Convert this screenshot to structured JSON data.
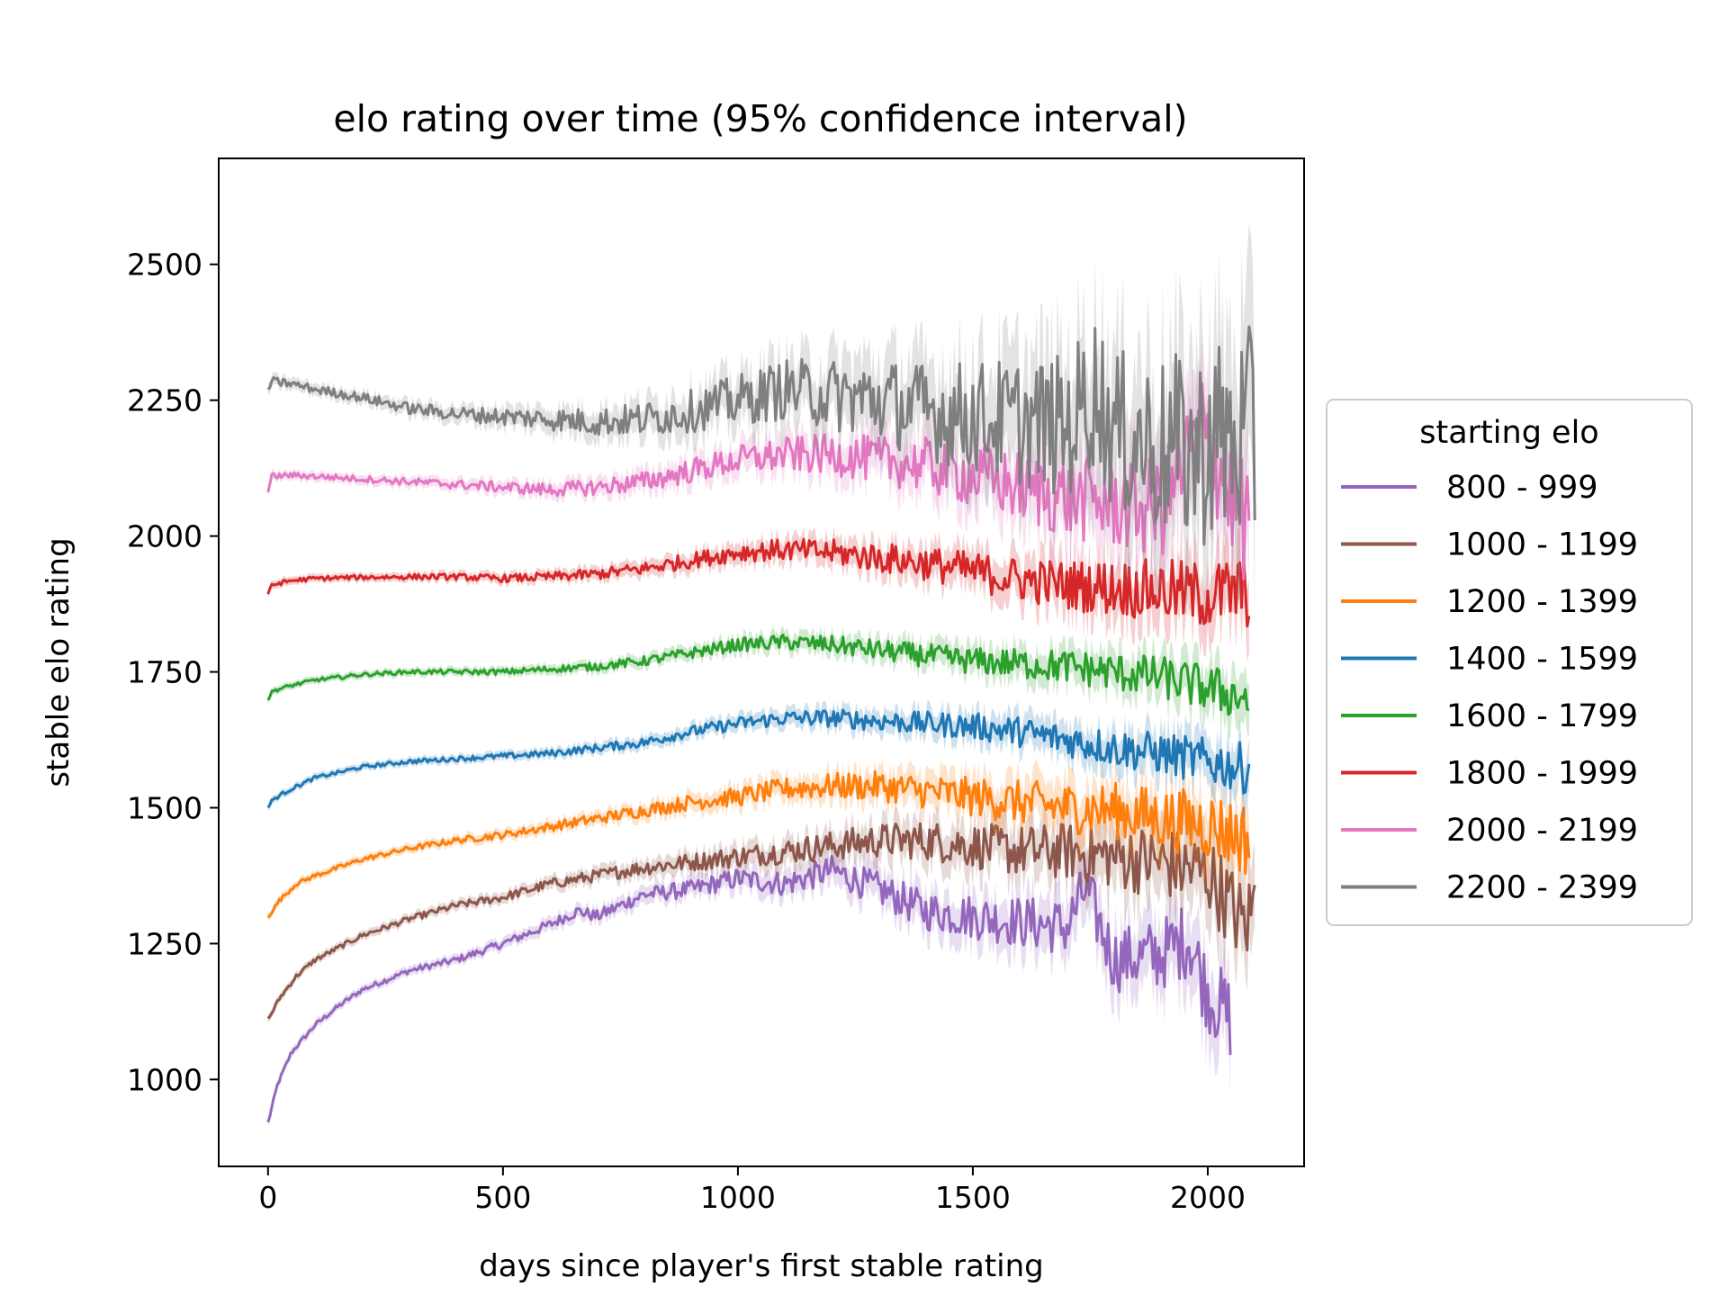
{
  "chart_data": {
    "type": "line",
    "title": "elo rating over time (95% confidence interval)",
    "xlabel": "days since player's first stable rating",
    "ylabel": "stable elo rating",
    "xlim": [
      -105,
      2205
    ],
    "ylim": [
      840,
      2695
    ],
    "x_ticks": [
      0,
      500,
      1000,
      1500,
      2000
    ],
    "y_ticks": [
      1000,
      1250,
      1500,
      1750,
      2000,
      2250,
      2500
    ],
    "x_tick_labels": [
      "0",
      "500",
      "1000",
      "1500",
      "2000"
    ],
    "y_tick_labels": [
      "1000",
      "1250",
      "1500",
      "1750",
      "2000",
      "2250",
      "2500"
    ],
    "grid": false,
    "legend": {
      "title": "starting elo",
      "placement": "center-right-outside"
    },
    "series": [
      {
        "name": "800 - 999",
        "color": "#9467bd",
        "points": [
          [
            0,
            920
          ],
          [
            20,
            990
          ],
          [
            50,
            1050
          ],
          [
            100,
            1100
          ],
          [
            150,
            1135
          ],
          [
            200,
            1165
          ],
          [
            300,
            1200
          ],
          [
            400,
            1220
          ],
          [
            500,
            1250
          ],
          [
            600,
            1285
          ],
          [
            660,
            1310
          ],
          [
            700,
            1300
          ],
          [
            800,
            1340
          ],
          [
            900,
            1350
          ],
          [
            1000,
            1370
          ],
          [
            1100,
            1360
          ],
          [
            1200,
            1385
          ],
          [
            1300,
            1350
          ],
          [
            1400,
            1310
          ],
          [
            1500,
            1300
          ],
          [
            1600,
            1290
          ],
          [
            1700,
            1280
          ],
          [
            1740,
            1350
          ],
          [
            1800,
            1220
          ],
          [
            1900,
            1230
          ],
          [
            1960,
            1260
          ],
          [
            2000,
            1160
          ],
          [
            2050,
            1110
          ]
        ],
        "noise": 0.35
      },
      {
        "name": "1000 - 1199",
        "color": "#8c564b",
        "points": [
          [
            0,
            1110
          ],
          [
            25,
            1150
          ],
          [
            60,
            1190
          ],
          [
            100,
            1220
          ],
          [
            200,
            1265
          ],
          [
            300,
            1295
          ],
          [
            400,
            1320
          ],
          [
            500,
            1335
          ],
          [
            600,
            1360
          ],
          [
            700,
            1375
          ],
          [
            800,
            1390
          ],
          [
            900,
            1400
          ],
          [
            1000,
            1410
          ],
          [
            1100,
            1420
          ],
          [
            1200,
            1430
          ],
          [
            1300,
            1440
          ],
          [
            1400,
            1440
          ],
          [
            1500,
            1430
          ],
          [
            1600,
            1420
          ],
          [
            1700,
            1420
          ],
          [
            1800,
            1410
          ],
          [
            1900,
            1400
          ],
          [
            2000,
            1380
          ],
          [
            2080,
            1280
          ],
          [
            2100,
            1330
          ]
        ],
        "noise": 0.35
      },
      {
        "name": "1200 - 1399",
        "color": "#ff7f0e",
        "points": [
          [
            0,
            1300
          ],
          [
            25,
            1330
          ],
          [
            60,
            1360
          ],
          [
            100,
            1375
          ],
          [
            200,
            1405
          ],
          [
            300,
            1425
          ],
          [
            400,
            1440
          ],
          [
            500,
            1450
          ],
          [
            600,
            1465
          ],
          [
            700,
            1480
          ],
          [
            800,
            1495
          ],
          [
            900,
            1510
          ],
          [
            1000,
            1520
          ],
          [
            1100,
            1535
          ],
          [
            1200,
            1540
          ],
          [
            1300,
            1540
          ],
          [
            1400,
            1530
          ],
          [
            1500,
            1520
          ],
          [
            1600,
            1510
          ],
          [
            1700,
            1500
          ],
          [
            1800,
            1495
          ],
          [
            1900,
            1480
          ],
          [
            2000,
            1470
          ],
          [
            2090,
            1440
          ]
        ],
        "noise": 0.3
      },
      {
        "name": "1400 - 1599",
        "color": "#1f77b4",
        "points": [
          [
            0,
            1500
          ],
          [
            10,
            1515
          ],
          [
            50,
            1535
          ],
          [
            100,
            1555
          ],
          [
            200,
            1575
          ],
          [
            300,
            1585
          ],
          [
            400,
            1590
          ],
          [
            500,
            1595
          ],
          [
            600,
            1600
          ],
          [
            700,
            1610
          ],
          [
            800,
            1620
          ],
          [
            900,
            1640
          ],
          [
            1000,
            1655
          ],
          [
            1100,
            1665
          ],
          [
            1200,
            1665
          ],
          [
            1300,
            1660
          ],
          [
            1400,
            1655
          ],
          [
            1500,
            1650
          ],
          [
            1600,
            1640
          ],
          [
            1700,
            1625
          ],
          [
            1800,
            1610
          ],
          [
            1900,
            1600
          ],
          [
            2000,
            1585
          ],
          [
            2090,
            1570
          ]
        ],
        "noise": 0.2
      },
      {
        "name": "1600 - 1799",
        "color": "#2ca02c",
        "points": [
          [
            0,
            1700
          ],
          [
            10,
            1715
          ],
          [
            50,
            1725
          ],
          [
            100,
            1735
          ],
          [
            200,
            1745
          ],
          [
            300,
            1750
          ],
          [
            400,
            1750
          ],
          [
            500,
            1750
          ],
          [
            600,
            1755
          ],
          [
            700,
            1760
          ],
          [
            800,
            1770
          ],
          [
            900,
            1785
          ],
          [
            1000,
            1800
          ],
          [
            1100,
            1805
          ],
          [
            1200,
            1800
          ],
          [
            1300,
            1790
          ],
          [
            1400,
            1780
          ],
          [
            1500,
            1770
          ],
          [
            1600,
            1765
          ],
          [
            1700,
            1760
          ],
          [
            1800,
            1750
          ],
          [
            1900,
            1740
          ],
          [
            2000,
            1720
          ],
          [
            2090,
            1700
          ]
        ],
        "noise": 0.2
      },
      {
        "name": "1800 - 1999",
        "color": "#d62728",
        "points": [
          [
            0,
            1890
          ],
          [
            8,
            1910
          ],
          [
            50,
            1918
          ],
          [
            100,
            1922
          ],
          [
            200,
            1924
          ],
          [
            300,
            1925
          ],
          [
            400,
            1925
          ],
          [
            500,
            1922
          ],
          [
            600,
            1925
          ],
          [
            700,
            1930
          ],
          [
            800,
            1940
          ],
          [
            900,
            1955
          ],
          [
            1000,
            1970
          ],
          [
            1100,
            1975
          ],
          [
            1200,
            1970
          ],
          [
            1300,
            1960
          ],
          [
            1400,
            1950
          ],
          [
            1500,
            1935
          ],
          [
            1600,
            1920
          ],
          [
            1700,
            1910
          ],
          [
            1800,
            1905
          ],
          [
            1900,
            1900
          ],
          [
            2000,
            1890
          ],
          [
            2090,
            1900
          ]
        ],
        "noise": 0.3
      },
      {
        "name": "2000 - 2199",
        "color": "#e377c2",
        "points": [
          [
            0,
            2080
          ],
          [
            8,
            2110
          ],
          [
            50,
            2112
          ],
          [
            100,
            2110
          ],
          [
            200,
            2105
          ],
          [
            300,
            2100
          ],
          [
            400,
            2095
          ],
          [
            500,
            2090
          ],
          [
            600,
            2085
          ],
          [
            700,
            2090
          ],
          [
            800,
            2100
          ],
          [
            900,
            2120
          ],
          [
            1000,
            2140
          ],
          [
            1100,
            2150
          ],
          [
            1200,
            2150
          ],
          [
            1300,
            2140
          ],
          [
            1400,
            2130
          ],
          [
            1500,
            2110
          ],
          [
            1600,
            2090
          ],
          [
            1700,
            2070
          ],
          [
            1800,
            2060
          ],
          [
            1900,
            2050
          ],
          [
            1990,
            2200
          ],
          [
            2050,
            2070
          ],
          [
            2090,
            2000
          ]
        ],
        "noise": 0.5
      },
      {
        "name": "2200 - 2399",
        "color": "#7f7f7f",
        "points": [
          [
            0,
            2270
          ],
          [
            8,
            2285
          ],
          [
            50,
            2280
          ],
          [
            100,
            2270
          ],
          [
            200,
            2255
          ],
          [
            300,
            2235
          ],
          [
            400,
            2225
          ],
          [
            500,
            2220
          ],
          [
            600,
            2215
          ],
          [
            700,
            2210
          ],
          [
            800,
            2215
          ],
          [
            900,
            2230
          ],
          [
            1000,
            2250
          ],
          [
            1100,
            2270
          ],
          [
            1200,
            2260
          ],
          [
            1300,
            2250
          ],
          [
            1400,
            2230
          ],
          [
            1500,
            2220
          ],
          [
            1600,
            2210
          ],
          [
            1700,
            2200
          ],
          [
            1760,
            2270
          ],
          [
            1800,
            2190
          ],
          [
            1880,
            2170
          ],
          [
            1900,
            2160
          ],
          [
            1950,
            2160
          ],
          [
            1980,
            2150
          ],
          [
            2000,
            2180
          ],
          [
            2050,
            2175
          ],
          [
            2100,
            2180
          ]
        ],
        "noise": 0.9
      }
    ]
  }
}
